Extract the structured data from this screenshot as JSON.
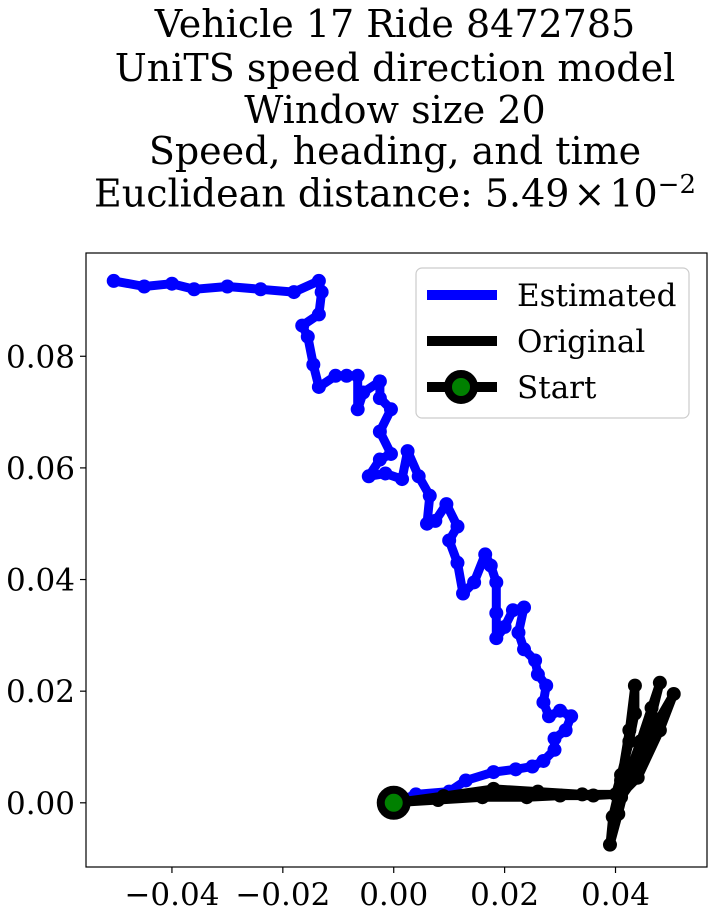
{
  "title_lines": [
    "Vehicle 17 Ride 8472785",
    "UniTS speed direction model",
    "Window size 20",
    "Speed, heading, and time"
  ],
  "distance_label": "Euclidean distance: 5.49",
  "distance_times": "×",
  "distance_base": "10",
  "distance_exp": "−2",
  "chart_data": {
    "type": "line",
    "xlim": [
      -0.0555,
      0.0565
    ],
    "ylim": [
      -0.0115,
      0.0985
    ],
    "x_ticks": [
      -0.04,
      -0.02,
      0.0,
      0.02,
      0.04
    ],
    "x_tick_labels": [
      "−0.04",
      "−0.02",
      "0.00",
      "0.02",
      "0.04"
    ],
    "y_ticks": [
      0.0,
      0.02,
      0.04,
      0.06,
      0.08
    ],
    "y_tick_labels": [
      "0.00",
      "0.02",
      "0.04",
      "0.06",
      "0.08"
    ],
    "grid": false,
    "legend_position": "top-right",
    "series": [
      {
        "name": "Estimated",
        "color": "#0000ff",
        "points": [
          [
            0.0,
            0.0
          ],
          [
            0.004,
            0.0015
          ],
          [
            0.01,
            0.002
          ],
          [
            0.013,
            0.004
          ],
          [
            0.018,
            0.0055
          ],
          [
            0.022,
            0.006
          ],
          [
            0.025,
            0.0065
          ],
          [
            0.027,
            0.0075
          ],
          [
            0.029,
            0.0095
          ],
          [
            0.029,
            0.0115
          ],
          [
            0.031,
            0.013
          ],
          [
            0.032,
            0.0155
          ],
          [
            0.03,
            0.0165
          ],
          [
            0.028,
            0.0155
          ],
          [
            0.027,
            0.018
          ],
          [
            0.0275,
            0.021
          ],
          [
            0.026,
            0.023
          ],
          [
            0.0255,
            0.0255
          ],
          [
            0.0235,
            0.0275
          ],
          [
            0.0225,
            0.0305
          ],
          [
            0.0235,
            0.035
          ],
          [
            0.0215,
            0.0345
          ],
          [
            0.02,
            0.0315
          ],
          [
            0.0185,
            0.0295
          ],
          [
            0.0185,
            0.034
          ],
          [
            0.0185,
            0.0395
          ],
          [
            0.0175,
            0.0425
          ],
          [
            0.0165,
            0.0445
          ],
          [
            0.0145,
            0.0395
          ],
          [
            0.0125,
            0.0375
          ],
          [
            0.0115,
            0.043
          ],
          [
            0.01,
            0.047
          ],
          [
            0.0115,
            0.0495
          ],
          [
            0.0095,
            0.0535
          ],
          [
            0.0075,
            0.0505
          ],
          [
            0.006,
            0.05
          ],
          [
            0.0065,
            0.055
          ],
          [
            0.0045,
            0.0585
          ],
          [
            0.0025,
            0.063
          ],
          [
            0.0015,
            0.058
          ],
          [
            -0.0015,
            0.059
          ],
          [
            -0.0045,
            0.0585
          ],
          [
            -0.0025,
            0.0615
          ],
          [
            -0.0005,
            0.0625
          ],
          [
            -0.0025,
            0.0665
          ],
          [
            -0.0005,
            0.0705
          ],
          [
            -0.0025,
            0.0725
          ],
          [
            -0.0025,
            0.0755
          ],
          [
            -0.0055,
            0.0735
          ],
          [
            -0.0065,
            0.0705
          ],
          [
            -0.0065,
            0.0765
          ],
          [
            -0.0085,
            0.0765
          ],
          [
            -0.0105,
            0.0765
          ],
          [
            -0.0135,
            0.0745
          ],
          [
            -0.0145,
            0.0785
          ],
          [
            -0.0155,
            0.0835
          ],
          [
            -0.0165,
            0.0855
          ],
          [
            -0.0135,
            0.0875
          ],
          [
            -0.013,
            0.0915
          ],
          [
            -0.0135,
            0.0935
          ],
          [
            -0.018,
            0.0915
          ],
          [
            -0.024,
            0.092
          ],
          [
            -0.03,
            0.0925
          ],
          [
            -0.036,
            0.092
          ],
          [
            -0.04,
            0.093
          ],
          [
            -0.045,
            0.0925
          ],
          [
            -0.0505,
            0.0935
          ]
        ]
      },
      {
        "name": "Original",
        "color": "#000000",
        "points": [
          [
            0.0,
            0.0
          ],
          [
            0.008,
            0.0005
          ],
          [
            0.016,
            0.001
          ],
          [
            0.024,
            0.001
          ],
          [
            0.03,
            0.0013
          ],
          [
            0.036,
            0.0013
          ],
          [
            0.04,
            0.0015
          ],
          [
            0.041,
            0.005
          ],
          [
            0.0425,
            0.011
          ],
          [
            0.0435,
            0.016
          ],
          [
            0.0435,
            0.021
          ],
          [
            0.0425,
            0.013
          ],
          [
            0.041,
            0.004
          ],
          [
            0.0395,
            -0.0025
          ],
          [
            0.039,
            -0.0075
          ],
          [
            0.0405,
            -0.002
          ],
          [
            0.042,
            0.004
          ],
          [
            0.0445,
            0.011
          ],
          [
            0.0465,
            0.017
          ],
          [
            0.048,
            0.0215
          ],
          [
            0.0465,
            0.0155
          ],
          [
            0.043,
            0.0065
          ],
          [
            0.041,
            0.001
          ],
          [
            0.0435,
            0.0045
          ],
          [
            0.047,
            0.0135
          ],
          [
            0.0505,
            0.0195
          ],
          [
            0.048,
            0.013
          ],
          [
            0.044,
            0.0045
          ],
          [
            0.041,
            0.0015
          ],
          [
            0.034,
            0.0015
          ],
          [
            0.026,
            0.002
          ],
          [
            0.018,
            0.0025
          ],
          [
            0.009,
            0.0012
          ],
          [
            0.0,
            0.0
          ]
        ]
      }
    ],
    "start_point": {
      "name": "Start",
      "x": 0.0,
      "y": 0.0,
      "color": "#000000",
      "inner_color": "#008000"
    }
  }
}
